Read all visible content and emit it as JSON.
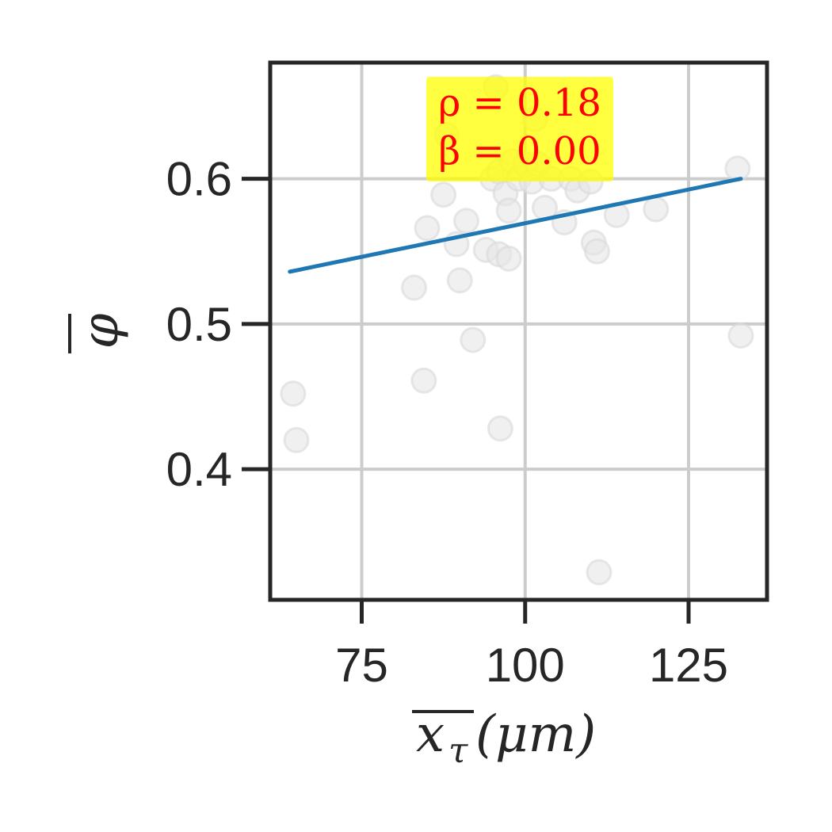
{
  "chart_data": {
    "type": "scatter",
    "title": "",
    "xlabel": {
      "var": "x",
      "sub": "τ",
      "unit": " (μm)"
    },
    "ylabel": "φ",
    "xlim": [
      61,
      137
    ],
    "ylim": [
      0.31,
      0.68
    ],
    "xticks": [
      75,
      100,
      125
    ],
    "xtick_labels": [
      "75",
      "100",
      "125"
    ],
    "yticks": [
      0.4,
      0.5,
      0.6
    ],
    "ytick_labels": [
      "0.4",
      "0.5",
      "0.6"
    ],
    "grid": true,
    "point_color": "#e6e6e6",
    "line_color": "#1f77b4",
    "annotation": {
      "lines": [
        "ρ = 0.18",
        "β = 0.00"
      ],
      "box_color": "#ffff00",
      "text_color": "#ff0000"
    },
    "points": [
      {
        "x": 64.5,
        "y": 0.452
      },
      {
        "x": 65,
        "y": 0.42
      },
      {
        "x": 83,
        "y": 0.525
      },
      {
        "x": 84.5,
        "y": 0.461
      },
      {
        "x": 85,
        "y": 0.566
      },
      {
        "x": 87.5,
        "y": 0.589
      },
      {
        "x": 88,
        "y": 0.63
      },
      {
        "x": 89.5,
        "y": 0.555
      },
      {
        "x": 90,
        "y": 0.53
      },
      {
        "x": 91,
        "y": 0.571
      },
      {
        "x": 92,
        "y": 0.489
      },
      {
        "x": 94,
        "y": 0.551
      },
      {
        "x": 95,
        "y": 0.6
      },
      {
        "x": 95.5,
        "y": 0.663
      },
      {
        "x": 96,
        "y": 0.605
      },
      {
        "x": 96,
        "y": 0.548
      },
      {
        "x": 96.2,
        "y": 0.428
      },
      {
        "x": 97,
        "y": 0.59
      },
      {
        "x": 97.5,
        "y": 0.578
      },
      {
        "x": 97.5,
        "y": 0.545
      },
      {
        "x": 98,
        "y": 0.612
      },
      {
        "x": 99,
        "y": 0.6
      },
      {
        "x": 100,
        "y": 0.61
      },
      {
        "x": 101,
        "y": 0.598
      },
      {
        "x": 101.5,
        "y": 0.641
      },
      {
        "x": 102,
        "y": 0.61
      },
      {
        "x": 103,
        "y": 0.58
      },
      {
        "x": 104,
        "y": 0.6
      },
      {
        "x": 106,
        "y": 0.57
      },
      {
        "x": 107,
        "y": 0.6
      },
      {
        "x": 108,
        "y": 0.592
      },
      {
        "x": 110,
        "y": 0.598
      },
      {
        "x": 110.5,
        "y": 0.556
      },
      {
        "x": 111,
        "y": 0.55
      },
      {
        "x": 111.3,
        "y": 0.329
      },
      {
        "x": 114,
        "y": 0.575
      },
      {
        "x": 120,
        "y": 0.579
      },
      {
        "x": 132.5,
        "y": 0.607
      },
      {
        "x": 133,
        "y": 0.492
      }
    ],
    "regression": {
      "x": [
        64,
        133
      ],
      "y": [
        0.536,
        0.6
      ]
    }
  }
}
